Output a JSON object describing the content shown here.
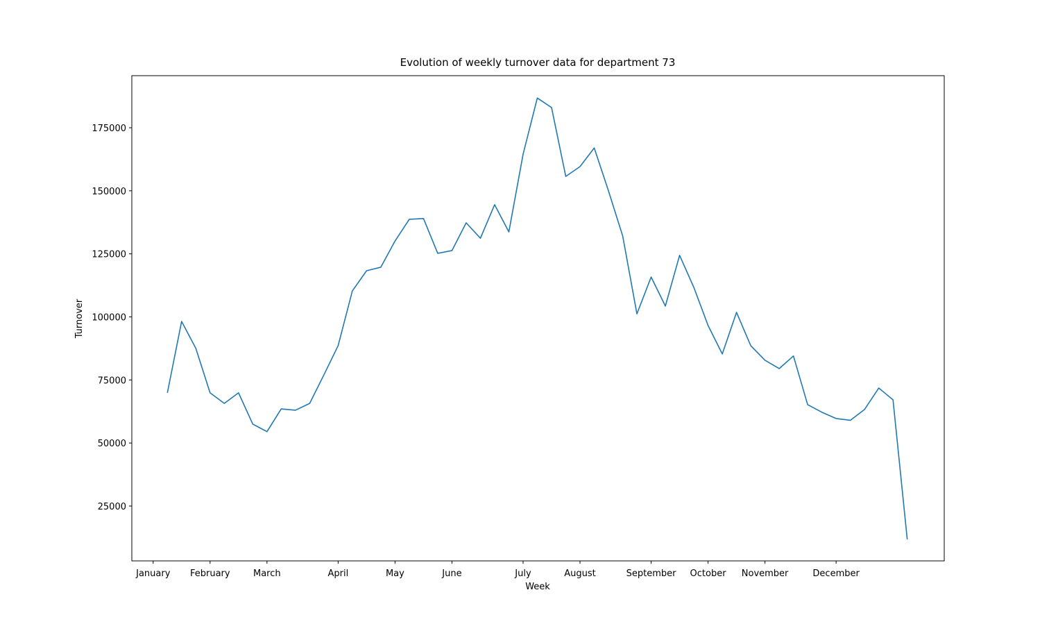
{
  "chart_data": {
    "type": "line",
    "title": "Evolution of weekly turnover data for department 73",
    "x_label": "Week",
    "y_label": "Turnover",
    "x": [
      1,
      2,
      3,
      4,
      5,
      6,
      7,
      8,
      9,
      10,
      11,
      12,
      13,
      14,
      15,
      16,
      17,
      18,
      19,
      20,
      21,
      22,
      23,
      24,
      25,
      26,
      27,
      28,
      29,
      30,
      31,
      32,
      33,
      34,
      35,
      36,
      37,
      38,
      39,
      40,
      41,
      42,
      43,
      44,
      45,
      46,
      47,
      48,
      49,
      50,
      51,
      52,
      53
    ],
    "series": [
      {
        "name": "Turnover",
        "color": "#1f77b4",
        "values": [
          69900,
          98200,
          87500,
          69900,
          65700,
          69900,
          57500,
          54500,
          63500,
          63000,
          65700,
          77000,
          88600,
          110300,
          118300,
          119700,
          130100,
          138700,
          139000,
          125200,
          126300,
          137300,
          131200,
          144500,
          133700,
          164500,
          186800,
          183000,
          155700,
          159600,
          167000,
          150000,
          132100,
          101200,
          115800,
          104300,
          124400,
          111700,
          96600,
          85300,
          101800,
          88600,
          82800,
          79500,
          84500,
          65200,
          62200,
          59700,
          59000,
          63300,
          71800,
          67100,
          11800
        ]
      }
    ],
    "xlim": [
      -1.5,
      55.6
    ],
    "xticks": [
      {
        "value": 0,
        "label": "January"
      },
      {
        "value": 4,
        "label": "February"
      },
      {
        "value": 8,
        "label": "March"
      },
      {
        "value": 13,
        "label": "April"
      },
      {
        "value": 17,
        "label": "May"
      },
      {
        "value": 21,
        "label": "June"
      },
      {
        "value": 26,
        "label": "July"
      },
      {
        "value": 30,
        "label": "August"
      },
      {
        "value": 35,
        "label": "September"
      },
      {
        "value": 39,
        "label": "October"
      },
      {
        "value": 43,
        "label": "November"
      },
      {
        "value": 48,
        "label": "December"
      }
    ],
    "ylim": [
      3250,
      195650
    ],
    "yticks": [
      25000,
      50000,
      75000,
      100000,
      125000,
      150000,
      175000
    ],
    "grid": false
  }
}
